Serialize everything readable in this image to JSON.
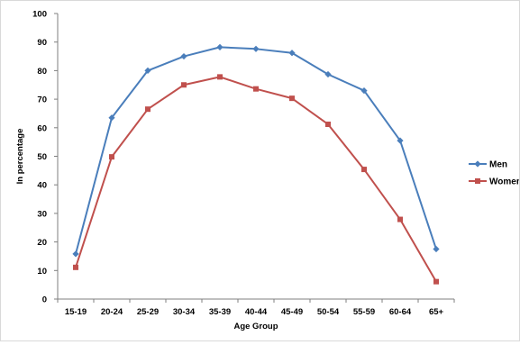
{
  "chart_data": {
    "type": "line",
    "title": "",
    "xlabel": "Age Group",
    "ylabel": "In percentage",
    "ylim": [
      0,
      100
    ],
    "yticks": [
      0,
      10,
      20,
      30,
      40,
      50,
      60,
      70,
      80,
      90,
      100
    ],
    "categories": [
      "15-19",
      "20-24",
      "25-29",
      "30-34",
      "35-39",
      "40-44",
      "45-49",
      "50-54",
      "55-59",
      "60-64",
      "65+"
    ],
    "grid": false,
    "legend_position": "right",
    "series": [
      {
        "name": "Men",
        "color": "#4a7ebb",
        "marker": "diamond",
        "values": [
          15.8,
          63.5,
          80.0,
          85.0,
          88.2,
          87.6,
          86.2,
          78.7,
          73.0,
          55.5,
          17.5
        ]
      },
      {
        "name": "Women",
        "color": "#c0504d",
        "marker": "square",
        "values": [
          11.1,
          49.8,
          66.5,
          75.0,
          77.8,
          73.6,
          70.3,
          61.2,
          45.4,
          27.9,
          6.1
        ]
      }
    ]
  }
}
